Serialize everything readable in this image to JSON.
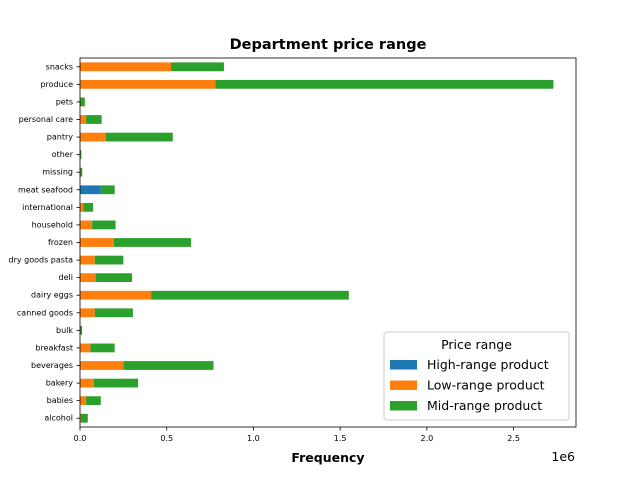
{
  "chart_data": {
    "type": "bar",
    "orientation": "horizontal",
    "stacked": true,
    "title": "Department price range",
    "xlabel": "Frequency",
    "ylabel": "",
    "x_scale_label": "1e6",
    "xlim": [
      0,
      2.86
    ],
    "x_ticks": [
      0.0,
      0.5,
      1.0,
      1.5,
      2.0,
      2.5
    ],
    "x_tick_labels": [
      "0.0",
      "0.5",
      "1.0",
      "1.5",
      "2.0",
      "2.5"
    ],
    "categories": [
      "alcohol",
      "babies",
      "bakery",
      "beverages",
      "breakfast",
      "bulk",
      "canned goods",
      "dairy eggs",
      "deli",
      "dry goods pasta",
      "frozen",
      "household",
      "international",
      "meat seafood",
      "missing",
      "other",
      "pantry",
      "personal care",
      "pets",
      "produce",
      "snacks"
    ],
    "series": [
      {
        "name": "High-range product",
        "color": "#1f77b4",
        "values": [
          0,
          0,
          0,
          0,
          0,
          0,
          0,
          0,
          0,
          0,
          0,
          0,
          0,
          0.12,
          0,
          0,
          0,
          0,
          0,
          0,
          0
        ]
      },
      {
        "name": "Low-range product",
        "color": "#ff7f0e",
        "values": [
          0.005,
          0.035,
          0.08,
          0.25,
          0.06,
          0.002,
          0.085,
          0.41,
          0.09,
          0.085,
          0.195,
          0.07,
          0.02,
          0,
          0.003,
          0.002,
          0.15,
          0.035,
          0.003,
          0.78,
          0.525
        ]
      },
      {
        "name": "Mid-range product",
        "color": "#2ca02c",
        "values": [
          0.04,
          0.085,
          0.255,
          0.52,
          0.14,
          0.01,
          0.22,
          1.14,
          0.21,
          0.165,
          0.445,
          0.135,
          0.055,
          0.08,
          0.01,
          0.006,
          0.385,
          0.09,
          0.025,
          1.95,
          0.305
        ]
      }
    ],
    "legend": {
      "title": "Price range",
      "position": "lower right"
    },
    "grid": false
  }
}
